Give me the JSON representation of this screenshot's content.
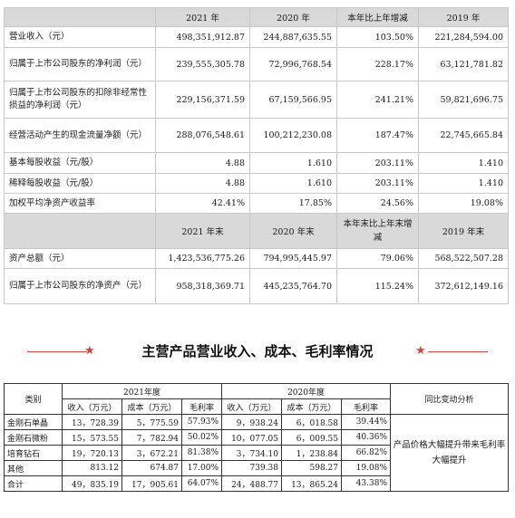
{
  "table1": {
    "header": [
      "",
      "2021 年",
      "2020 年",
      "本年比上年增减",
      "2019 年"
    ],
    "rows": [
      [
        "营业收入（元）",
        "498,351,912.87",
        "244,887,635.55",
        "103.50%",
        "221,284,594.00"
      ],
      [
        "归属于上市公司股东的净利润（元）",
        "239,555,305.78",
        "72,996,768.54",
        "228.17%",
        "63,121,781.82"
      ],
      [
        "归属于上市公司股东的扣除非经常性损益的净利润（元）",
        "229,156,371.59",
        "67,159,566.95",
        "241.21%",
        "59,821,696.75"
      ],
      [
        "经营活动产生的现金流量净额（元）",
        "288,076,548.61",
        "100,212,230.08",
        "187.47%",
        "22,745,665.84"
      ],
      [
        "基本每股收益（元/股）",
        "4.88",
        "1.610",
        "203.11%",
        "1.410"
      ],
      [
        "稀释每股收益（元/股）",
        "4.88",
        "1.610",
        "203.11%",
        "1.410"
      ],
      [
        "加权平均净资产收益率",
        "42.41%",
        "17.85%",
        "24.56%",
        "19.08%"
      ]
    ],
    "header2": [
      "",
      "2021 年末",
      "2020 年末",
      "本年末比上年末增减",
      "2019 年末"
    ],
    "rows2": [
      [
        "资产总额（元）",
        "1,423,536,775.26",
        "794,995,445.97",
        "79.06%",
        "568,522,507.28"
      ],
      [
        "归属于上市公司股东的净资产（元）",
        "958,318,369.71",
        "445,235,764.70",
        "115.24%",
        "372,612,149.16"
      ]
    ]
  },
  "section_title": "主营产品营业收入、成本、毛利率情况",
  "table2": {
    "category_label": "类别",
    "year1": "2021年度",
    "year2": "2020年度",
    "analysis_label": "同比变动分析",
    "subheaders": [
      "收入（万元）",
      "成本（万元）",
      "毛利率",
      "收入（万元）",
      "成本（万元）",
      "毛利率"
    ],
    "rows": [
      [
        "金刚石单晶",
        "13，728.39",
        "5，775.59",
        "57.93%",
        "9，938.24",
        "6，018.58",
        "39.44%"
      ],
      [
        "金刚石微粉",
        "15，573.55",
        "7，782.94",
        "50.02%",
        "10，077.05",
        "6，009.55",
        "40.36%"
      ],
      [
        "培育钻石",
        "19，720.13",
        "3，672.21",
        "81.38%",
        "3，734.10",
        "1，238.84",
        "66.82%"
      ],
      [
        "其他",
        "813.12",
        "674.87",
        "17.00%",
        "739.38",
        "598.27",
        "19.08%"
      ],
      [
        "合计",
        "49，835.19",
        "17，905.61",
        "64.07%",
        "24，488.77",
        "13，865.24",
        "43.38%"
      ]
    ],
    "analysis_note": "产品价格大幅提升带来毛利率大幅提升"
  }
}
